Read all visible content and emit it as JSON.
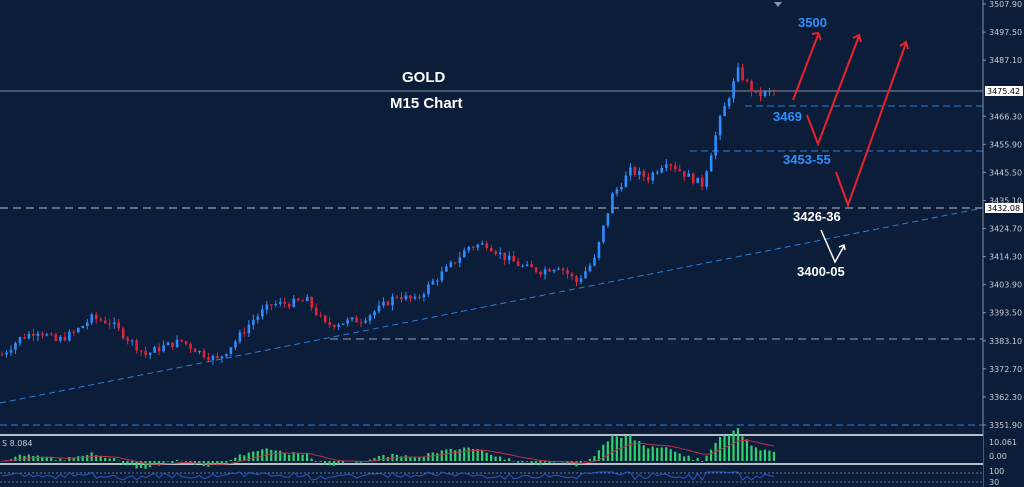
{
  "title": "GOLD",
  "subtitle": "M15 Chart",
  "colors": {
    "background": "#0b1d38",
    "bull": "#2f8cff",
    "bear": "#d8283a",
    "arrow": "#e8232b",
    "level_blue": "#2e90ff",
    "level_white": "#ffffff",
    "hist": "#2fd36e",
    "signal": "#c0304a",
    "rsi": "#2a58c8"
  },
  "price_axis": {
    "labels": [
      "3507.90",
      "3497.50",
      "3487.10",
      "3466.30",
      "3455.90",
      "3445.50",
      "3435.10",
      "3424.70",
      "3414.30",
      "3403.90",
      "3393.50",
      "3383.10",
      "3372.70",
      "3362.30",
      "3351.90"
    ],
    "current_price": "3475.42",
    "marked_level": "3432.08",
    "range": [
      3351.9,
      3507.9
    ]
  },
  "levels": {
    "target": "3500",
    "l1": "3469",
    "l2": "3453-55",
    "l3": "3426-36",
    "l4": "3400-05"
  },
  "indicator": {
    "label": "S 8.084",
    "scale_top": "10.061",
    "scale_zero": "0.00",
    "rsi_top": "100",
    "rsi_bottom": "30"
  },
  "chart_data": {
    "type": "candlestick",
    "symbol": "GOLD",
    "timeframe": "M15",
    "closes": [
      3378,
      3384,
      3387,
      3383,
      3386,
      3391.5,
      3390,
      3384,
      3378,
      3381,
      3383,
      3379,
      3376,
      3383,
      3391,
      3396.5,
      3397,
      3398,
      3389,
      3390,
      3391,
      3395,
      3400,
      3398,
      3405,
      3411,
      3418,
      3419,
      3414,
      3410.5,
      3409,
      3411,
      3405,
      3413,
      3437,
      3446,
      3443.5,
      3450,
      3445,
      3441,
      3465,
      3483,
      3474,
      3475.42
    ],
    "ylim": [
      3351.9,
      3507.9
    ],
    "horizontal_levels": [
      3475.42,
      3469,
      3454,
      3432.08,
      3383.1,
      3351.9
    ]
  }
}
